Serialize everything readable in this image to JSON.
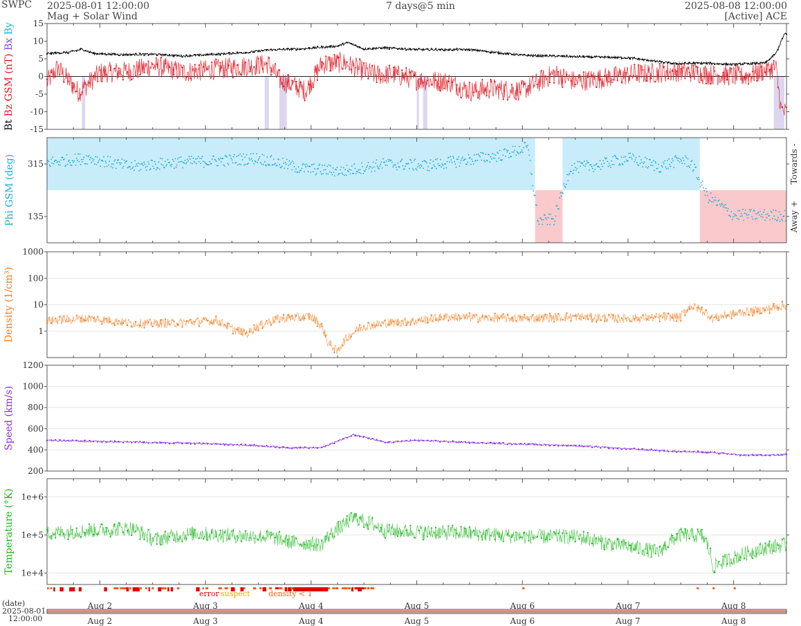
{
  "header": {
    "brand": "SWPC",
    "start": "2025-08-01 12:00:00",
    "subtitle": "Mag + Solar Wind",
    "span": "7 days@5 min",
    "end": "2025-08-08 12:00:00",
    "source": "[Active] ACE"
  },
  "colors": {
    "bt": "#000000",
    "bz": "#e0141e",
    "bx": "#7b3fe4",
    "by": "#00b4e8",
    "phi": "#1aa9d6",
    "towards_band": "#c9ecfa",
    "away_band": "#f9c9cb",
    "density": "#f07a1c",
    "speed": "#8a2be2",
    "temperature": "#1ab51a",
    "flag_error": "#e00000",
    "flag_suspect": "#f0a000",
    "flag_density": "#f06010",
    "gap_shade": "#ddd6f0",
    "grid": "#e6e6e6"
  },
  "chart_data": [
    {
      "type": "line",
      "panel": "mag",
      "ylabel_parts": [
        "Bt",
        "Bz GSM (nT)",
        "Bx",
        "By"
      ],
      "ylim": [
        -15,
        15
      ],
      "yticks": [
        "15",
        "10",
        "5",
        "0",
        "-5",
        "-10",
        "-15"
      ],
      "x_unit": "days since 2025-08-01 12:00",
      "series": [
        {
          "name": "Bt",
          "x": [
            0,
            0.2,
            0.33,
            0.45,
            0.7,
            1.0,
            1.3,
            1.6,
            1.9,
            2.0,
            2.1,
            2.4,
            2.75,
            2.85,
            3.0,
            3.2,
            3.5,
            4.0,
            4.5,
            5.0,
            5.5,
            5.95,
            6.2,
            6.5,
            6.8,
            6.9,
            6.98
          ],
          "y": [
            6.5,
            6.8,
            7.7,
            6.5,
            6.2,
            6.3,
            5.8,
            6.3,
            6.8,
            7.2,
            7.5,
            7.8,
            8.6,
            9.6,
            7.8,
            8.1,
            7.6,
            7.6,
            6.0,
            5.6,
            5.3,
            3.6,
            3.8,
            3.4,
            3.8,
            6.5,
            12.0
          ]
        },
        {
          "name": "Bz GSM",
          "x": [
            0,
            0.1,
            0.3,
            0.5,
            0.8,
            1.0,
            1.3,
            1.6,
            1.9,
            2.1,
            2.2,
            2.45,
            2.6,
            2.8,
            3.0,
            3.1,
            3.3,
            3.5,
            3.8,
            4.0,
            4.2,
            4.5,
            4.8,
            5.0,
            5.5,
            6.0,
            6.3,
            6.6,
            6.9,
            6.95,
            7.0
          ],
          "y": [
            -1.8,
            2.5,
            -4.5,
            1.0,
            1.5,
            3.0,
            1.2,
            2.0,
            3.0,
            3.5,
            -1.0,
            -4.0,
            3.5,
            4.0,
            1.5,
            0.5,
            0.5,
            -1.0,
            -1.5,
            -4.2,
            -3.5,
            -4.0,
            0.8,
            -1.5,
            0.5,
            1.5,
            0.5,
            0.0,
            2.5,
            -9.5,
            -10.5
          ]
        }
      ]
    },
    {
      "type": "scatter",
      "panel": "phi",
      "ylabel": "Phi GSM (deg)",
      "ylim": [
        45,
        405
      ],
      "yticks": [
        "315",
        "135"
      ],
      "side_labels": [
        "Towards -",
        "Away +"
      ],
      "bands": [
        {
          "sector": "towards",
          "from": 0.0,
          "to": 4.62
        },
        {
          "sector": "away",
          "from": 4.62,
          "to": 4.88
        },
        {
          "sector": "towards",
          "from": 4.88,
          "to": 6.18
        },
        {
          "sector": "away",
          "from": 6.18,
          "to": 7.0
        }
      ],
      "series": [
        {
          "name": "Phi",
          "x": [
            0,
            0.4,
            0.8,
            1.2,
            1.6,
            2.0,
            2.4,
            2.8,
            3.2,
            3.6,
            4.0,
            4.3,
            4.55,
            4.65,
            4.8,
            4.95,
            5.2,
            5.5,
            5.8,
            6.0,
            6.1,
            6.25,
            6.5,
            6.8,
            7.0
          ],
          "y": [
            320,
            335,
            305,
            320,
            325,
            335,
            300,
            290,
            315,
            310,
            330,
            345,
            372,
            120,
            125,
            300,
            310,
            335,
            305,
            330,
            318,
            205,
            140,
            140,
            138
          ]
        }
      ]
    },
    {
      "type": "line",
      "panel": "density",
      "ylabel": "Density (1/cm³)",
      "scale": "log",
      "ylim": [
        0.1,
        1000
      ],
      "yticks": [
        "1000",
        "100",
        "10",
        "1"
      ],
      "series": [
        {
          "name": "Density",
          "x": [
            0,
            0.4,
            0.8,
            1.2,
            1.6,
            1.75,
            1.9,
            2.2,
            2.5,
            2.65,
            2.75,
            2.85,
            3.0,
            3.2,
            3.5,
            3.8,
            4.1,
            4.5,
            5.0,
            5.5,
            6.0,
            6.1,
            6.3,
            6.5,
            6.8,
            7.0
          ],
          "y": [
            2.5,
            3.0,
            2.0,
            2.0,
            2.5,
            1.2,
            0.8,
            3.0,
            3.5,
            0.4,
            0.15,
            0.6,
            1.5,
            2.0,
            2.5,
            3.5,
            3.2,
            3.0,
            3.5,
            3.0,
            3.5,
            9.0,
            3.0,
            4.5,
            6.5,
            9.5
          ]
        }
      ]
    },
    {
      "type": "line",
      "panel": "speed",
      "ylabel": "Speed (km/s)",
      "ylim": [
        200,
        1200
      ],
      "yticks": [
        "1200",
        "1000",
        "800",
        "600",
        "400",
        "200"
      ],
      "series": [
        {
          "name": "Speed",
          "x": [
            0,
            0.5,
            1.0,
            1.5,
            2.0,
            2.3,
            2.6,
            2.9,
            3.2,
            3.5,
            4.0,
            4.5,
            5.0,
            5.5,
            6.0,
            6.3,
            6.6,
            6.9,
            7.0
          ],
          "y": [
            490,
            480,
            470,
            460,
            440,
            420,
            420,
            545,
            470,
            490,
            470,
            455,
            440,
            410,
            385,
            375,
            350,
            350,
            360
          ]
        }
      ]
    },
    {
      "type": "line",
      "panel": "temperature",
      "ylabel": "Temperature (°K)",
      "scale": "log",
      "ylim": [
        5000,
        3000000
      ],
      "yticks": [
        "1e+6",
        "1e+5",
        "1e+4"
      ],
      "series": [
        {
          "name": "Temperature",
          "x": [
            0,
            0.4,
            0.8,
            1.0,
            1.4,
            1.8,
            2.1,
            2.3,
            2.6,
            2.8,
            2.9,
            3.2,
            3.5,
            4.0,
            4.5,
            5.0,
            5.3,
            5.5,
            5.8,
            6.0,
            6.2,
            6.3,
            6.5,
            6.8,
            7.0
          ],
          "y": [
            110000,
            130000,
            150000,
            75000,
            110000,
            95000,
            90000,
            65000,
            55000,
            170000,
            280000,
            130000,
            120000,
            110000,
            90000,
            90000,
            60000,
            50000,
            35000,
            100000,
            95000,
            14000,
            25000,
            45000,
            55000
          ]
        }
      ]
    }
  ],
  "flags": {
    "labels": [
      "error",
      "suspect",
      "density < 1"
    ]
  },
  "x_axis": {
    "ticks": [
      "Aug 2",
      "Aug 3",
      "Aug 4",
      "Aug 5",
      "Aug 6",
      "Aug 7",
      "Aug 8"
    ]
  },
  "footer": {
    "label_top": "(date)",
    "label_date": "2025-08-01",
    "label_time": "12:00:00"
  }
}
